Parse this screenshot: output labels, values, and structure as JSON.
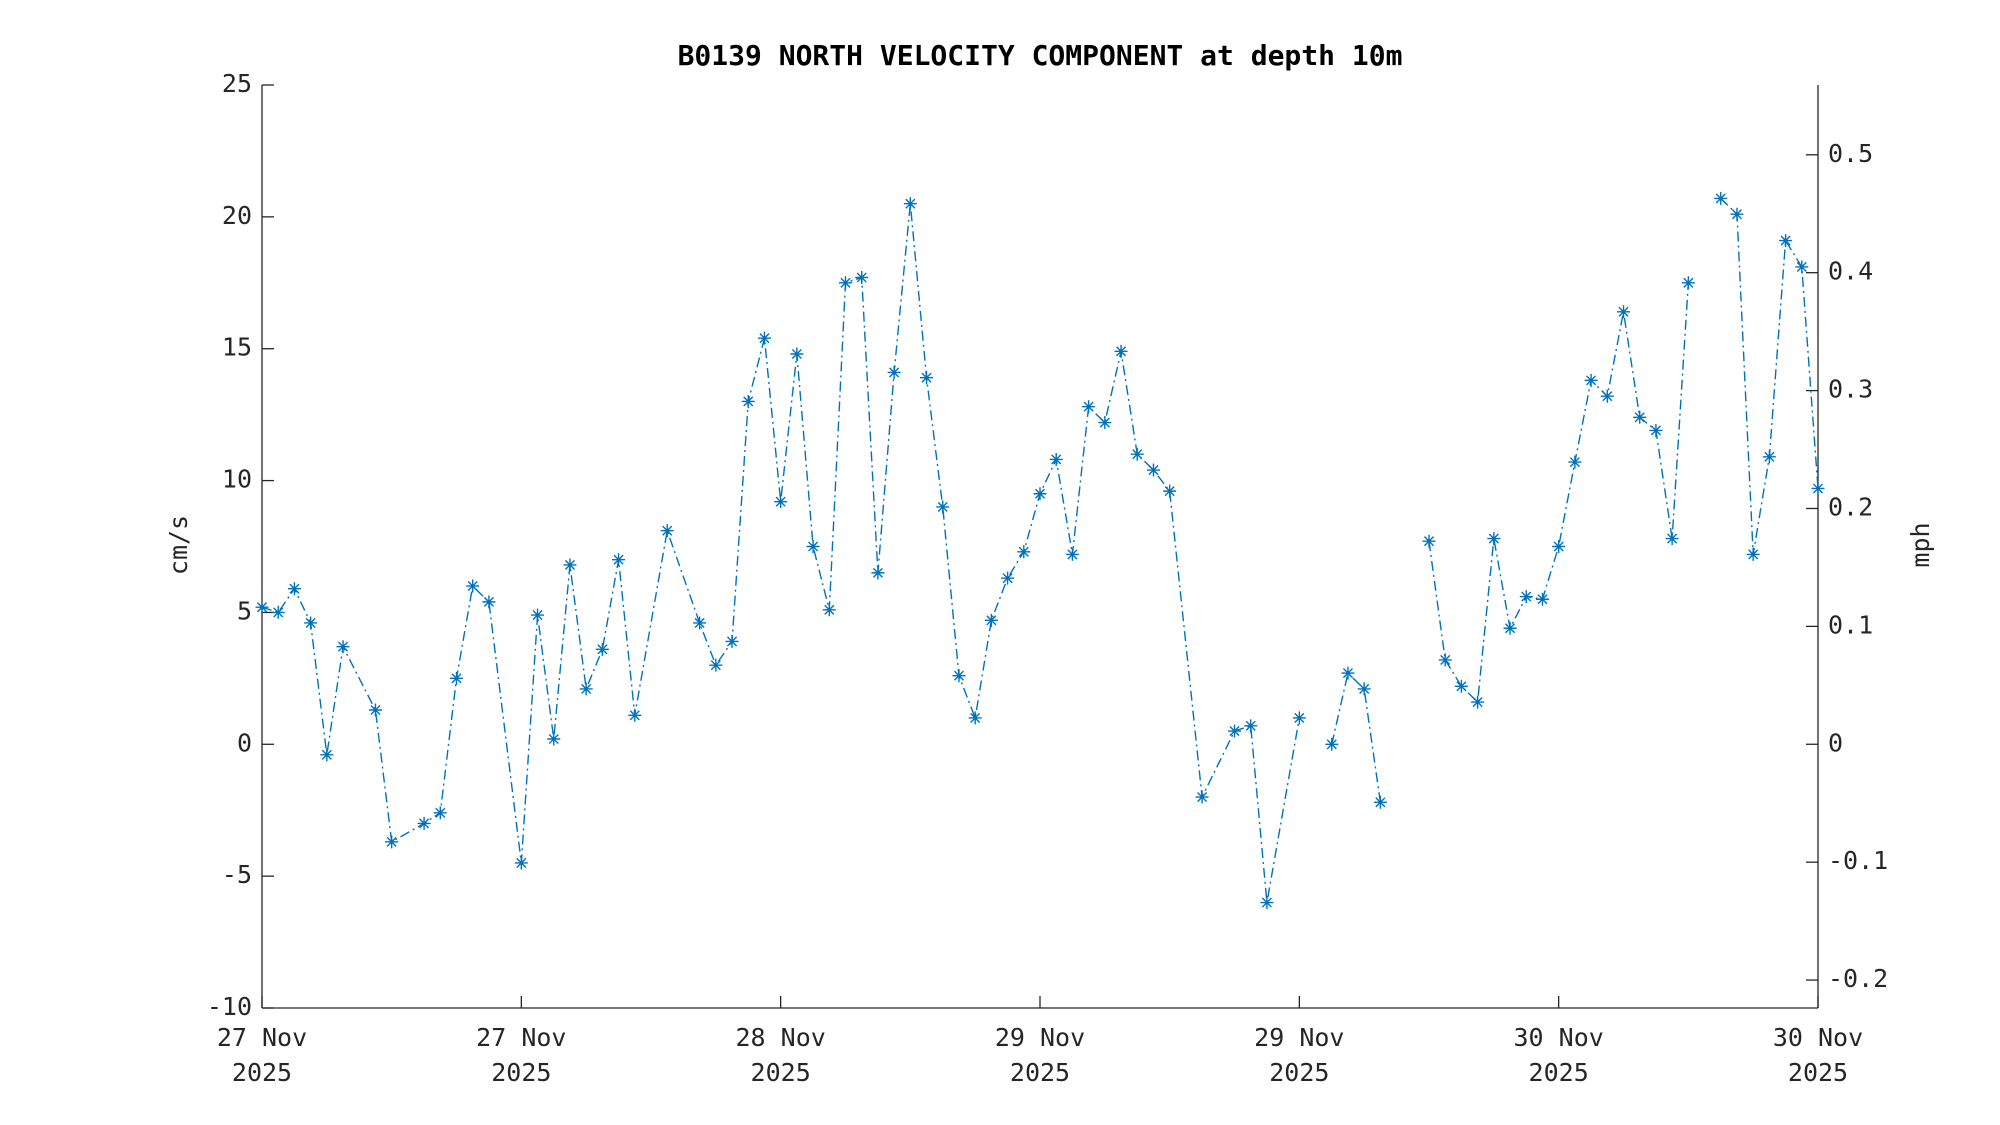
{
  "chart_data": {
    "type": "line",
    "title": "B0139 NORTH VELOCITY COMPONENT at depth 10m",
    "y_label": "cm/s",
    "y2_label": "mph",
    "xlim": [
      0,
      96
    ],
    "xticks": [
      {
        "value": 0,
        "label": "27 Nov\n2025"
      },
      {
        "value": 16,
        "label": "27 Nov\n2025"
      },
      {
        "value": 32,
        "label": "28 Nov\n2025"
      },
      {
        "value": 48,
        "label": "29 Nov\n2025"
      },
      {
        "value": 64,
        "label": "29 Nov\n2025"
      },
      {
        "value": 80,
        "label": "30 Nov\n2025"
      },
      {
        "value": 96,
        "label": "30 Nov\n2025"
      }
    ],
    "ylim": [
      -10,
      25
    ],
    "yticks": [
      -10,
      -5,
      0,
      5,
      10,
      15,
      20,
      25
    ],
    "y2lim": [
      -0.2237,
      0.5592
    ],
    "y2ticks": [
      -0.2,
      -0.1,
      0,
      0.1,
      0.2,
      0.3,
      0.4,
      0.5
    ],
    "x": [
      0,
      1,
      2,
      3,
      4,
      5,
      7,
      8,
      10,
      11,
      12,
      13,
      14,
      16,
      17,
      18,
      19,
      20,
      21,
      22,
      23,
      25,
      27,
      28,
      29,
      30,
      31,
      32,
      33,
      34,
      35,
      36,
      37,
      38,
      39,
      40,
      41,
      42,
      43,
      44,
      45,
      46,
      47,
      48,
      49,
      50,
      51,
      52,
      53,
      54,
      55,
      56,
      58,
      60,
      61,
      62,
      64,
      65,
      66,
      67,
      68,
      69,
      70,
      72,
      73,
      74,
      75,
      76,
      77,
      78,
      79,
      80,
      81,
      82,
      83,
      84,
      85,
      86,
      87,
      88,
      89,
      90,
      91,
      92,
      93,
      94,
      95,
      96
    ],
    "series": [
      {
        "name": "North velocity",
        "color": "#0072bd",
        "values": [
          5.2,
          5.0,
          5.9,
          4.6,
          -0.4,
          3.7,
          1.3,
          -3.7,
          -3.0,
          -2.6,
          2.5,
          6.0,
          5.4,
          -4.5,
          4.9,
          0.2,
          6.8,
          2.1,
          3.6,
          7.0,
          1.1,
          8.1,
          4.6,
          3.0,
          3.9,
          13.0,
          15.4,
          9.2,
          14.8,
          7.5,
          5.1,
          17.5,
          17.7,
          6.5,
          14.1,
          20.5,
          13.9,
          9.0,
          2.6,
          1.0,
          4.7,
          6.3,
          7.3,
          9.5,
          10.8,
          7.2,
          12.8,
          12.2,
          14.9,
          11.0,
          10.4,
          9.6,
          -2.0,
          0.5,
          0.7,
          -6.0,
          1.0,
          null,
          0.0,
          2.7,
          2.1,
          -2.2,
          null,
          7.7,
          3.2,
          2.2,
          1.6,
          7.8,
          4.4,
          5.6,
          5.5,
          7.5,
          10.7,
          13.8,
          13.2,
          16.4,
          12.4,
          11.9,
          7.8,
          17.5,
          null,
          20.7,
          20.1,
          7.2,
          10.9,
          19.1,
          18.1,
          9.7
        ]
      }
    ]
  }
}
